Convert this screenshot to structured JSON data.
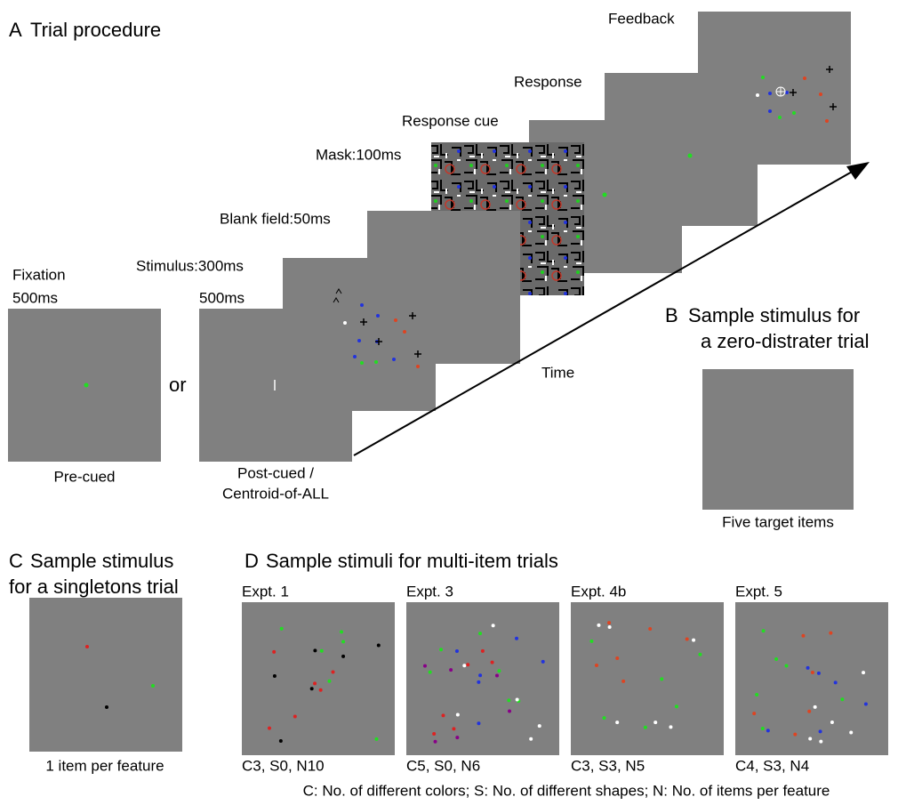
{
  "panel_a": {
    "letter": "A",
    "title": "Trial procedure",
    "fixation": {
      "label": "Fixation",
      "duration": "500ms",
      "caption": "Pre-cued"
    },
    "post_cue": {
      "duration": "500ms",
      "caption": [
        "Post-cued /",
        "Centroid-of-ALL"
      ]
    },
    "or": "or",
    "stimulus": "Stimulus:300ms",
    "blank": "Blank field:50ms",
    "mask": "Mask:100ms",
    "response_cue": "Response cue",
    "response": "Response",
    "feedback": "Feedback",
    "time": "Time"
  },
  "panel_b": {
    "letter": "B",
    "title": [
      "Sample stimulus for",
      "a zero-distrater trial"
    ],
    "caption": "Five target items"
  },
  "panel_c": {
    "letter": "C",
    "title": [
      "Sample stimulus",
      "for a singletons trial"
    ],
    "caption": "1 item per feature"
  },
  "panel_d": {
    "letter": "D",
    "title": "Sample stimuli for multi-item trials",
    "experiments": [
      {
        "name": "Expt. 1",
        "caption": "C3, S0, N10"
      },
      {
        "name": "Expt. 3",
        "caption": "C5, S0, N6"
      },
      {
        "name": "Expt. 4b",
        "caption": "C3, S3, N5"
      },
      {
        "name": "Expt. 5",
        "caption": "C4, S3, N4"
      }
    ],
    "footnote": "C: No. of different colors; S: No. of different shapes; N: No. of items per feature"
  }
}
